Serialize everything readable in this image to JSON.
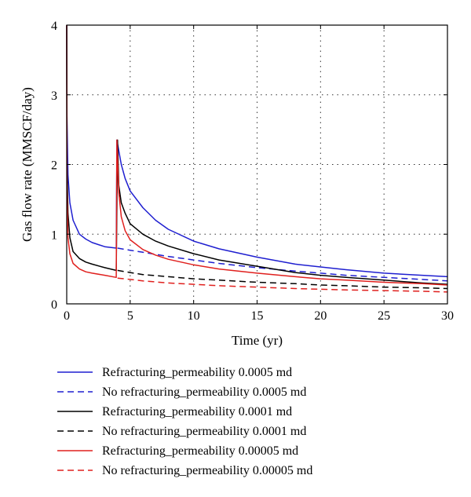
{
  "chart_data": {
    "type": "line",
    "title": "",
    "xlabel": "Time (yr)",
    "ylabel": "Gas flow rate (MMSCF/day)",
    "xlim": [
      0,
      30
    ],
    "ylim": [
      0,
      4
    ],
    "xticks": [
      0,
      5,
      10,
      15,
      20,
      25,
      30
    ],
    "yticks": [
      0,
      1,
      2,
      3,
      4
    ],
    "grid": "dotted",
    "legend_position": "below plot",
    "series": [
      {
        "name": "Refracturing_permeability 0.0005 md",
        "color": "#1f1fd0",
        "style": "solid",
        "x": [
          0,
          0.02,
          0.1,
          0.25,
          0.5,
          1,
          1.5,
          2,
          3,
          3.9,
          3.95,
          4.1,
          4.3,
          4.6,
          5,
          6,
          7,
          8,
          10,
          12,
          15,
          18,
          20,
          22,
          25,
          28,
          30
        ],
        "y": [
          4.0,
          2.7,
          1.85,
          1.45,
          1.2,
          1.0,
          0.93,
          0.88,
          0.82,
          0.8,
          2.35,
          2.2,
          2.0,
          1.8,
          1.62,
          1.38,
          1.2,
          1.07,
          0.9,
          0.79,
          0.67,
          0.57,
          0.53,
          0.49,
          0.44,
          0.41,
          0.39
        ]
      },
      {
        "name": "No refracturing_permeability 0.0005 md",
        "color": "#1f1fd0",
        "style": "dashed",
        "x": [
          4,
          5,
          6,
          8,
          10,
          12,
          15,
          18,
          20,
          22,
          25,
          28,
          30
        ],
        "y": [
          0.8,
          0.77,
          0.74,
          0.68,
          0.63,
          0.58,
          0.52,
          0.47,
          0.44,
          0.41,
          0.38,
          0.35,
          0.33
        ]
      },
      {
        "name": "Refracturing_permeability 0.0001 md",
        "color": "#000000",
        "style": "solid",
        "x": [
          0,
          0.02,
          0.1,
          0.25,
          0.5,
          1,
          1.5,
          2,
          3,
          3.9,
          4.0,
          4.1,
          4.3,
          4.6,
          5,
          6,
          7,
          8,
          10,
          12,
          15,
          18,
          20,
          22,
          25,
          28,
          30
        ],
        "y": [
          4.0,
          2.0,
          1.3,
          0.95,
          0.75,
          0.65,
          0.6,
          0.57,
          0.52,
          0.48,
          2.35,
          1.7,
          1.45,
          1.3,
          1.15,
          1.0,
          0.9,
          0.83,
          0.72,
          0.63,
          0.54,
          0.45,
          0.41,
          0.38,
          0.34,
          0.3,
          0.28
        ]
      },
      {
        "name": "No refracturing_permeability 0.0001 md",
        "color": "#000000",
        "style": "dashed",
        "x": [
          4,
          5,
          6,
          8,
          10,
          12,
          15,
          18,
          20,
          22,
          25,
          28,
          30
        ],
        "y": [
          0.48,
          0.45,
          0.42,
          0.39,
          0.36,
          0.34,
          0.31,
          0.29,
          0.27,
          0.26,
          0.24,
          0.23,
          0.22
        ]
      },
      {
        "name": "Refracturing_permeability 0.00005 md",
        "color": "#e0201e",
        "style": "solid",
        "x": [
          0,
          0.02,
          0.1,
          0.25,
          0.5,
          1,
          1.5,
          2,
          3,
          3.9,
          3.95,
          4.1,
          4.3,
          4.6,
          5,
          6,
          7,
          8,
          10,
          12,
          15,
          18,
          20,
          22,
          25,
          28,
          30
        ],
        "y": [
          4.0,
          1.6,
          0.95,
          0.72,
          0.58,
          0.5,
          0.46,
          0.44,
          0.41,
          0.38,
          2.35,
          1.6,
          1.25,
          1.05,
          0.92,
          0.78,
          0.7,
          0.64,
          0.56,
          0.5,
          0.44,
          0.39,
          0.36,
          0.34,
          0.31,
          0.29,
          0.27
        ]
      },
      {
        "name": "No refracturing_permeability 0.00005 md",
        "color": "#e0201e",
        "style": "dashed",
        "x": [
          4,
          5,
          6,
          8,
          10,
          12,
          15,
          18,
          20,
          22,
          25,
          28,
          30
        ],
        "y": [
          0.37,
          0.35,
          0.33,
          0.3,
          0.28,
          0.26,
          0.24,
          0.22,
          0.21,
          0.2,
          0.19,
          0.18,
          0.17
        ]
      }
    ]
  }
}
